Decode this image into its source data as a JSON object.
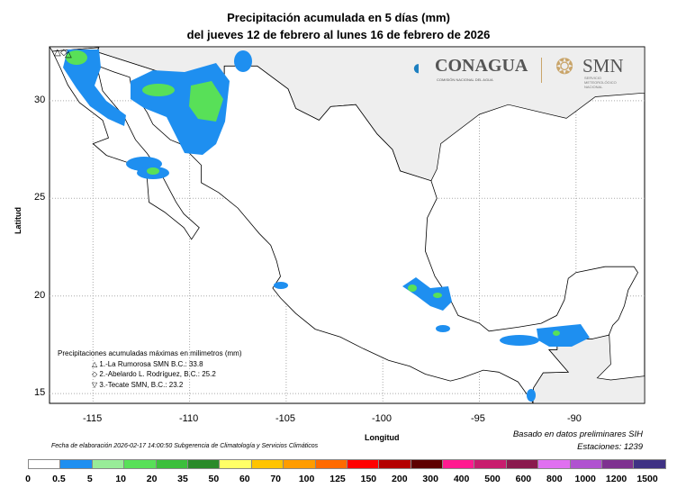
{
  "title": {
    "line1": "Precipitación acumulada en 5 días (mm)",
    "line2": "del jueves 12 de febrero al lunes 16 de febrero de 2026"
  },
  "axes": {
    "xlabel": "Longitud",
    "ylabel": "Latitud",
    "x_ticks": [
      "-115",
      "-110",
      "-105",
      "-100",
      "-95",
      "-90"
    ],
    "y_ticks": [
      "30",
      "25",
      "20",
      "15"
    ],
    "lon_range": [
      -117.25,
      -86.45
    ],
    "lat_range": [
      14.5,
      32.76
    ]
  },
  "logos": {
    "conagua": "CONAGUA",
    "conagua_sub": "COMISIÓN NACIONAL DEL AGUA",
    "smn": "SMN",
    "smn_sub": "SERVICIO METEOROLÓGICO NACIONAL"
  },
  "legend": {
    "title": "Precipitaciones acumuladas máximas en milimetros (mm)",
    "items": [
      {
        "symbol": "△",
        "text": "1.-La Rumorosa SMN B.C.: 33.8"
      },
      {
        "symbol": "◇",
        "text": "2.-Abelardo L. Rodríguez, B.C.: 25.2"
      },
      {
        "symbol": "▽",
        "text": "3.-Tecate SMN, B.C.: 23.2"
      }
    ]
  },
  "footer": {
    "fecha": "Fecha de elaboración 2026-02-17 14:00:50 Subgerencia de Climatología y Servicios Climáticos",
    "basado": "Basado en datos preliminares SIH",
    "estaciones": "Estaciones:  1239"
  },
  "colorbar": {
    "labels": [
      "0",
      "0.5",
      "5",
      "10",
      "20",
      "35",
      "50",
      "60",
      "70",
      "100",
      "125",
      "150",
      "200",
      "300",
      "400",
      "500",
      "600",
      "800",
      "1000",
      "1200",
      "1500"
    ],
    "colors": [
      "#ffffff",
      "#1e8ff0",
      "#98ec98",
      "#58e058",
      "#3cbf3c",
      "#2a8a2a",
      "#ffff66",
      "#ffc400",
      "#ff9c00",
      "#ff6a00",
      "#ff0000",
      "#b40000",
      "#5e0000",
      "#ff1a90",
      "#c81c6e",
      "#8a1a4e",
      "#e070f0",
      "#b052d0",
      "#7e3290",
      "#3f3284"
    ]
  }
}
